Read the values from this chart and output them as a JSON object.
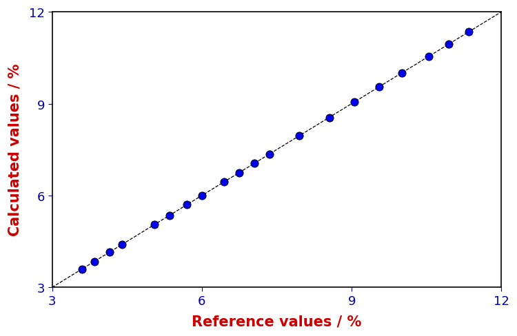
{
  "x_points": [
    3.6,
    3.85,
    4.15,
    4.4,
    5.05,
    5.35,
    5.7,
    6.0,
    6.45,
    6.75,
    7.05,
    7.35,
    7.95,
    8.55,
    9.05,
    9.55,
    10.0,
    10.55,
    10.95,
    11.35
  ],
  "y_points": [
    3.6,
    3.85,
    4.15,
    4.4,
    5.05,
    5.35,
    5.7,
    6.0,
    6.45,
    6.75,
    7.05,
    7.35,
    7.95,
    8.55,
    9.05,
    9.55,
    10.0,
    10.55,
    10.95,
    11.35
  ],
  "line_x": [
    3.0,
    12.0
  ],
  "line_y": [
    3.0,
    12.0
  ],
  "dot_color": "#0000EE",
  "dot_edgecolor": "#000000",
  "line_color": "#000000",
  "xlabel": "Reference values / %",
  "ylabel": "Calculated values / %",
  "xlabel_color": "#CC0000",
  "ylabel_color": "#CC0000",
  "xlim": [
    3.0,
    12.0
  ],
  "ylim": [
    3.0,
    12.0
  ],
  "xticks": [
    3,
    6,
    9,
    12
  ],
  "yticks": [
    3,
    6,
    9,
    12
  ],
  "marker_size": 8,
  "line_style": "--",
  "line_width": 1.0,
  "xlabel_fontsize": 15,
  "ylabel_fontsize": 15,
  "tick_fontsize": 13,
  "tick_color": "#0000AA",
  "background_color": "#ffffff"
}
